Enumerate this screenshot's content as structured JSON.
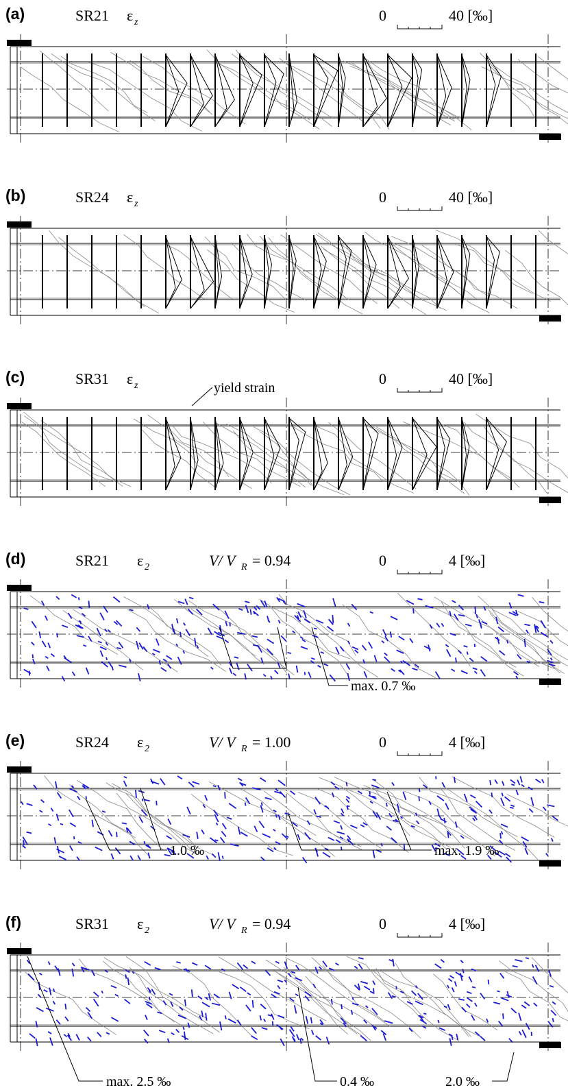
{
  "panels": [
    {
      "label": "(a)",
      "specimen": "SR21",
      "symbol": "ε",
      "symbol_sub": "z",
      "scale_zero": "0",
      "scale_end": "40 [‰]",
      "annotations": []
    },
    {
      "label": "(b)",
      "specimen": "SR24",
      "symbol": "ε",
      "symbol_sub": "z",
      "scale_zero": "0",
      "scale_end": "40 [‰]",
      "annotations": []
    },
    {
      "label": "(c)",
      "specimen": "SR31",
      "symbol": "ε",
      "symbol_sub": "z",
      "scale_zero": "0",
      "scale_end": "40 [‰]",
      "annotations": [
        "yield strain"
      ]
    },
    {
      "label": "(d)",
      "specimen": "SR21",
      "symbol": "ε",
      "symbol_sub": "2",
      "ratio": "V/ V",
      "ratio_sub": "R",
      "ratio_value": "= 0.94",
      "scale_zero": "0",
      "scale_end": "4 [‰]",
      "annotations": [
        "max. 0.7 ‰"
      ]
    },
    {
      "label": "(e)",
      "specimen": "SR24",
      "symbol": "ε",
      "symbol_sub": "2",
      "ratio": "V/ V",
      "ratio_sub": "R",
      "ratio_value": "= 1.00",
      "scale_zero": "0",
      "scale_end": "4 [‰]",
      "annotations": [
        "1.0 ‰",
        "max. 1.9 ‰"
      ]
    },
    {
      "label": "(f)",
      "specimen": "SR31",
      "symbol": "ε",
      "symbol_sub": "2",
      "ratio": "V/ V",
      "ratio_sub": "R",
      "ratio_value": "= 0.94",
      "scale_zero": "0",
      "scale_end": "4 [‰]",
      "annotations": [
        "max. 2.5 ‰",
        "0.4 ‰",
        "2.0 ‰"
      ]
    }
  ]
}
